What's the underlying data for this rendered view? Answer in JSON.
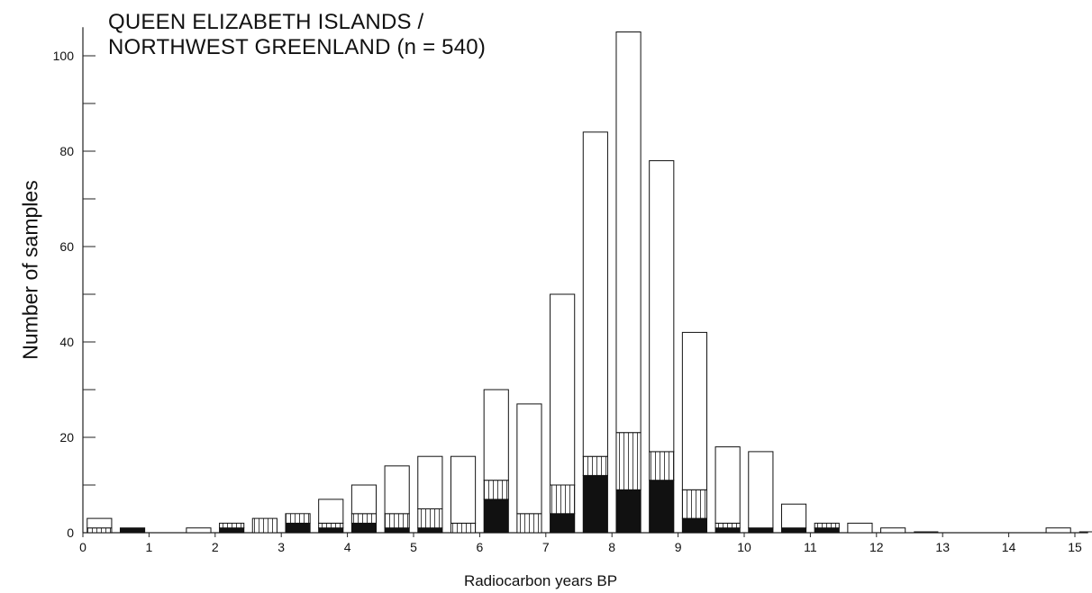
{
  "chart_data": {
    "type": "bar",
    "title_lines": [
      "QUEEN ELIZABETH ISLANDS /",
      "NORTHWEST GREENLAND (n = 540)"
    ],
    "xlabel": "Radiocarbon years BP",
    "ylabel": "Number of samples",
    "xlim": [
      0,
      15.2
    ],
    "ylim": [
      0,
      106
    ],
    "x_ticks": [
      0,
      1,
      2,
      3,
      4,
      5,
      6,
      7,
      8,
      9,
      10,
      11,
      12,
      13,
      14,
      15
    ],
    "y_ticks": [
      0,
      20,
      40,
      60,
      80,
      100
    ],
    "bin_width": 0.5,
    "bin_starts": [
      0,
      0.5,
      1.5,
      2,
      2.5,
      3,
      3.5,
      4,
      4.5,
      5,
      5.5,
      6,
      6.5,
      7,
      7.5,
      8,
      8.5,
      9,
      9.5,
      10,
      10.5,
      11,
      11.5,
      12,
      12.5,
      14.5,
      15
    ],
    "series": [
      {
        "values": [
          0,
          1,
          0,
          1,
          0,
          2,
          1,
          2,
          1,
          1,
          0,
          7,
          0,
          4,
          12,
          9,
          11,
          3,
          1,
          1,
          1,
          1,
          0,
          0,
          0,
          0,
          0
        ],
        "fill": "#111111",
        "pattern": "solid"
      },
      {
        "values": [
          1,
          0,
          0,
          1,
          3,
          2,
          1,
          2,
          3,
          4,
          2,
          4,
          4,
          6,
          4,
          12,
          6,
          6,
          1,
          0,
          0,
          1,
          0,
          0,
          0,
          0,
          0
        ],
        "fill": "#ffffff",
        "pattern": "vertical-hatch"
      },
      {
        "values": [
          2,
          0,
          1,
          0,
          0,
          0,
          5,
          6,
          10,
          11,
          14,
          19,
          23,
          40,
          68,
          84,
          61,
          33,
          16,
          16,
          5,
          0,
          2,
          1,
          0,
          1,
          0
        ],
        "fill": "#ffffff",
        "pattern": "open"
      }
    ],
    "totals": [
      3,
      1,
      1,
      2,
      3,
      4,
      7,
      10,
      14,
      16,
      16,
      30,
      27,
      50,
      84,
      105,
      78,
      42,
      18,
      17,
      6,
      2,
      2,
      1,
      0,
      1,
      0
    ],
    "grid": false,
    "legend": "none"
  }
}
